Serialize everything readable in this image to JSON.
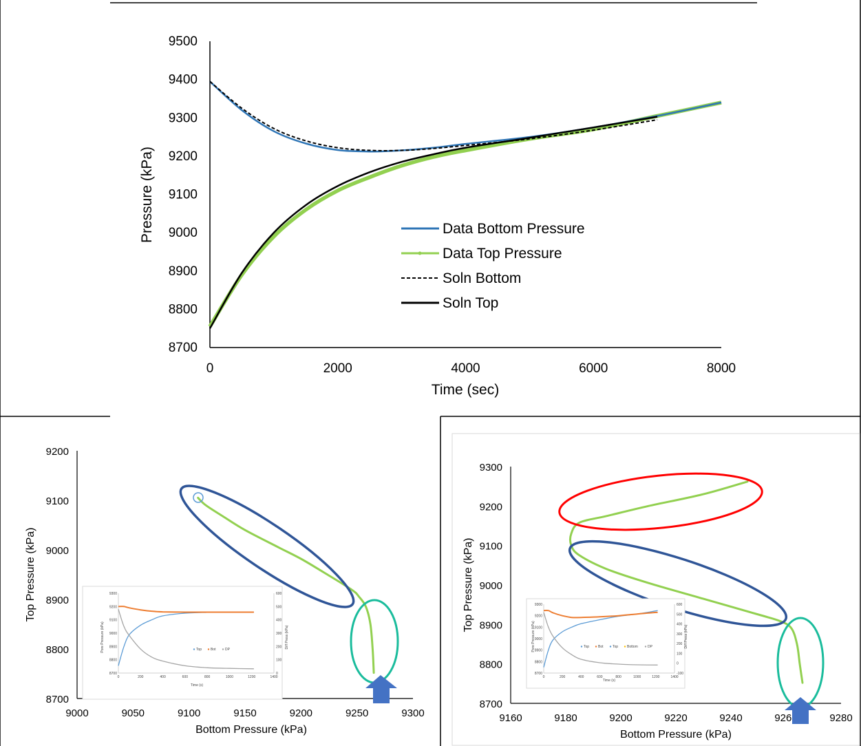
{
  "chart_data": [
    {
      "type": "line",
      "title": "",
      "xlabel": "Time (sec)",
      "ylabel": "Pressure (kPa)",
      "xlim": [
        0,
        8000
      ],
      "ylim": [
        8700,
        9500
      ],
      "x_ticks": [
        "0",
        "2000",
        "4000",
        "6000",
        "8000"
      ],
      "y_ticks": [
        "8700",
        "8800",
        "8900",
        "9000",
        "9100",
        "9200",
        "9300",
        "9400",
        "9500"
      ],
      "legend_position": "center-right",
      "series": [
        {
          "name": "Data Bottom Pressure",
          "color": "#2e75b6",
          "style": "solid",
          "x": [
            0,
            500,
            1000,
            1500,
            2000,
            2500,
            3000,
            3500,
            4000,
            5000,
            6000,
            7000,
            8000
          ],
          "y": [
            9395,
            9320,
            9265,
            9233,
            9216,
            9212,
            9215,
            9222,
            9232,
            9250,
            9275,
            9305,
            9340
          ]
        },
        {
          "name": "Data Top Pressure",
          "color": "#92d050",
          "style": "markers",
          "x": [
            0,
            500,
            1000,
            1500,
            2000,
            2500,
            3000,
            3500,
            4000,
            5000,
            6000,
            7000,
            8000
          ],
          "y": [
            8755,
            8890,
            8990,
            9060,
            9110,
            9145,
            9175,
            9198,
            9215,
            9245,
            9270,
            9305,
            9340
          ]
        },
        {
          "name": "Soln Bottom",
          "color": "#000000",
          "style": "dashed",
          "x": [
            0,
            500,
            1000,
            1500,
            2000,
            2500,
            3000,
            3500,
            4000,
            5000,
            6000,
            7000
          ],
          "y": [
            9395,
            9325,
            9272,
            9240,
            9222,
            9215,
            9215,
            9220,
            9228,
            9245,
            9268,
            9295
          ]
        },
        {
          "name": "Soln Top",
          "color": "#000000",
          "style": "solid",
          "x": [
            0,
            500,
            1000,
            1500,
            2000,
            2500,
            3000,
            3500,
            4000,
            5000,
            6000,
            7000
          ],
          "y": [
            8750,
            8895,
            9000,
            9072,
            9122,
            9158,
            9185,
            9205,
            9222,
            9248,
            9275,
            9303
          ]
        }
      ]
    },
    {
      "type": "scatter",
      "title": "",
      "xlabel": "Bottom Pressure (kPa)",
      "ylabel": "Top Pressure (kPa)",
      "xlim": [
        9000,
        9300
      ],
      "ylim": [
        8700,
        9200
      ],
      "x_ticks": [
        "9000",
        "9050",
        "9100",
        "9150",
        "9200",
        "9250",
        "9300"
      ],
      "y_ticks": [
        "8700",
        "8800",
        "8900",
        "9000",
        "9100",
        "9200"
      ],
      "series": [
        {
          "name": "",
          "color": "#92d050",
          "x": [
            9265,
            9264,
            9262,
            9258,
            9252,
            9245,
            9220,
            9200,
            9180,
            9150,
            9130,
            9115,
            9108
          ],
          "y": [
            8752,
            8800,
            8850,
            8885,
            8905,
            8920,
            8955,
            8982,
            9005,
            9040,
            9068,
            9090,
            9105
          ]
        }
      ],
      "annotations": [
        {
          "shape": "ellipse",
          "color": "#2f5597",
          "label": ""
        },
        {
          "shape": "ellipse",
          "color": "#1abc9c",
          "label": ""
        },
        {
          "shape": "circle",
          "color": "#5b9bd5",
          "label": ""
        },
        {
          "shape": "arrow-up",
          "color": "#4472c4",
          "label": ""
        }
      ],
      "inset": {
        "xlabel": "Time (s)",
        "ylabel": "Pore Pressure (kPa)",
        "y2label": "Diff Press (kPa)",
        "xlim": [
          0,
          1400
        ],
        "ylim": [
          8700,
          9300
        ],
        "y2lim": [
          0,
          600
        ],
        "x_ticks": [
          "0",
          "200",
          "400",
          "600",
          "800",
          "1000",
          "1200",
          "1400"
        ],
        "y_ticks": [
          "8700",
          "8800",
          "8900",
          "9000",
          "9100",
          "9200",
          "9300"
        ],
        "y2_ticks": [
          "0",
          "100",
          "200",
          "300",
          "400",
          "500",
          "600"
        ],
        "legend": [
          "Top",
          "Bot",
          "DP"
        ],
        "series": [
          {
            "name": "Top",
            "color": "#5b9bd5",
            "x": [
              0,
              50,
              100,
              200,
              300,
              400,
              600,
              800,
              1000,
              1220
            ],
            "y": [
              8755,
              8900,
              8990,
              9060,
              9100,
              9130,
              9150,
              9156,
              9158,
              9158
            ]
          },
          {
            "name": "Bot",
            "color": "#ed7d31",
            "x": [
              0,
              50,
              100,
              200,
              300,
              400,
              600,
              800,
              1000,
              1220
            ],
            "y": [
              9200,
              9200,
              9190,
              9175,
              9165,
              9160,
              9158,
              9158,
              9158,
              9158
            ]
          },
          {
            "name": "DP",
            "color": "#a5a5a5",
            "x": [
              0,
              50,
              100,
              200,
              300,
              400,
              600,
              800,
              1000,
              1220
            ],
            "y": [
              9180,
              9050,
              8980,
              8880,
              8820,
              8790,
              8755,
              8740,
              8735,
              8732
            ]
          }
        ]
      }
    },
    {
      "type": "scatter",
      "title": "",
      "xlabel": "Bottom Pressure (kPa)",
      "ylabel": "Top Pressure (kPa)",
      "xlim": [
        9160,
        9280
      ],
      "ylim": [
        8700,
        9300
      ],
      "x_ticks": [
        "9160",
        "9180",
        "9200",
        "9220",
        "9240",
        "9260",
        "9280"
      ],
      "y_ticks": [
        "8700",
        "8800",
        "8900",
        "9000",
        "9100",
        "9200",
        "9300"
      ],
      "series": [
        {
          "name": "",
          "color": "#92d050",
          "x": [
            9266,
            9265,
            9264,
            9262,
            9258,
            9250,
            9230,
            9210,
            9195,
            9185,
            9182,
            9182,
            9185,
            9195,
            9210,
            9230,
            9246
          ],
          "y": [
            8752,
            8800,
            8850,
            8890,
            8908,
            8925,
            8965,
            9005,
            9040,
            9075,
            9100,
            9130,
            9158,
            9175,
            9200,
            9230,
            9262
          ]
        }
      ],
      "annotations": [
        {
          "shape": "ellipse",
          "color": "#ff0000",
          "label": ""
        },
        {
          "shape": "ellipse",
          "color": "#2f5597",
          "label": ""
        },
        {
          "shape": "ellipse",
          "color": "#1abc9c",
          "label": ""
        },
        {
          "shape": "arrow-up",
          "color": "#4472c4",
          "label": ""
        }
      ],
      "inset": {
        "xlabel": "Time (s)",
        "ylabel": "Pore Pressure (kPa)",
        "y2label": "Diff Press (kPa)",
        "xlim": [
          0,
          1400
        ],
        "ylim": [
          8700,
          9300
        ],
        "y2lim": [
          -100,
          600
        ],
        "x_ticks": [
          "0",
          "200",
          "400",
          "600",
          "800",
          "1000",
          "1200",
          "1400"
        ],
        "y_ticks": [
          "8700",
          "8800",
          "8900",
          "9000",
          "9100",
          "9200",
          "9300"
        ],
        "y2_ticks": [
          "-100",
          "0",
          "100",
          "200",
          "300",
          "400",
          "500",
          "600"
        ],
        "legend": [
          "Top",
          "Bot",
          "Top",
          "Bottom",
          "DP"
        ],
        "series": [
          {
            "name": "Top",
            "color": "#5b9bd5",
            "x": [
              0,
              50,
              100,
              200,
              300,
              400,
              600,
              800,
              1000,
              1220
            ],
            "y": [
              8750,
              8900,
              8990,
              9060,
              9100,
              9130,
              9165,
              9195,
              9215,
              9245
            ]
          },
          {
            "name": "Bot",
            "color": "#ed7d31",
            "x": [
              0,
              50,
              100,
              200,
              300,
              400,
              600,
              800,
              1000,
              1220
            ],
            "y": [
              9245,
              9245,
              9225,
              9200,
              9185,
              9185,
              9190,
              9200,
              9215,
              9230
            ]
          },
          {
            "name": "DP",
            "color": "#a5a5a5",
            "x": [
              0,
              50,
              100,
              200,
              300,
              400,
              600,
              800,
              1000,
              1220
            ],
            "y": [
              9230,
              9100,
              9020,
              8920,
              8860,
              8820,
              8790,
              8778,
              8772,
              8770
            ]
          }
        ]
      }
    }
  ]
}
